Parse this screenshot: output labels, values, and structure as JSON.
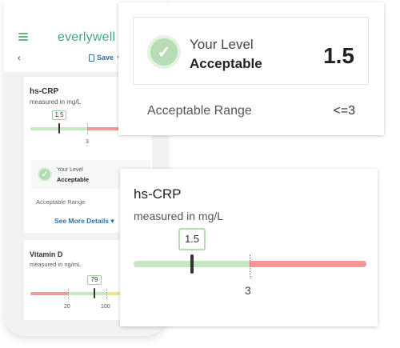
{
  "app": {
    "brand": "everlywell",
    "save_label": "Save",
    "back_glyph": "‹",
    "menu_icon": "hamburger-icon"
  },
  "colors": {
    "brand_green": "#4aa578",
    "range_green": "#c6e7c2",
    "range_red": "#ef9a97",
    "range_yellow": "#f3df9c",
    "link_blue": "#2e6fa3"
  },
  "phone_crp": {
    "title": "hs-CRP",
    "unit_label": "measured in mg/L",
    "value": "1.5",
    "threshold_tick": "3",
    "level_label": "Your Level",
    "level_value": "Acceptable",
    "range_label": "Acceptable Range",
    "see_more": "See More Details ▾"
  },
  "phone_vitd": {
    "title": "Vitamin D",
    "unit_label": "measured in ng/mL",
    "value": "79",
    "ticks": [
      "20",
      "100"
    ]
  },
  "level_card": {
    "level_label": "Your Level",
    "level_value": "Acceptable",
    "level_number": "1.5",
    "range_label": "Acceptable Range",
    "range_value": "<=3"
  },
  "crp_card": {
    "title": "hs-CRP",
    "unit_label": "measured in mg/L",
    "value": "1.5",
    "threshold_tick": "3"
  }
}
